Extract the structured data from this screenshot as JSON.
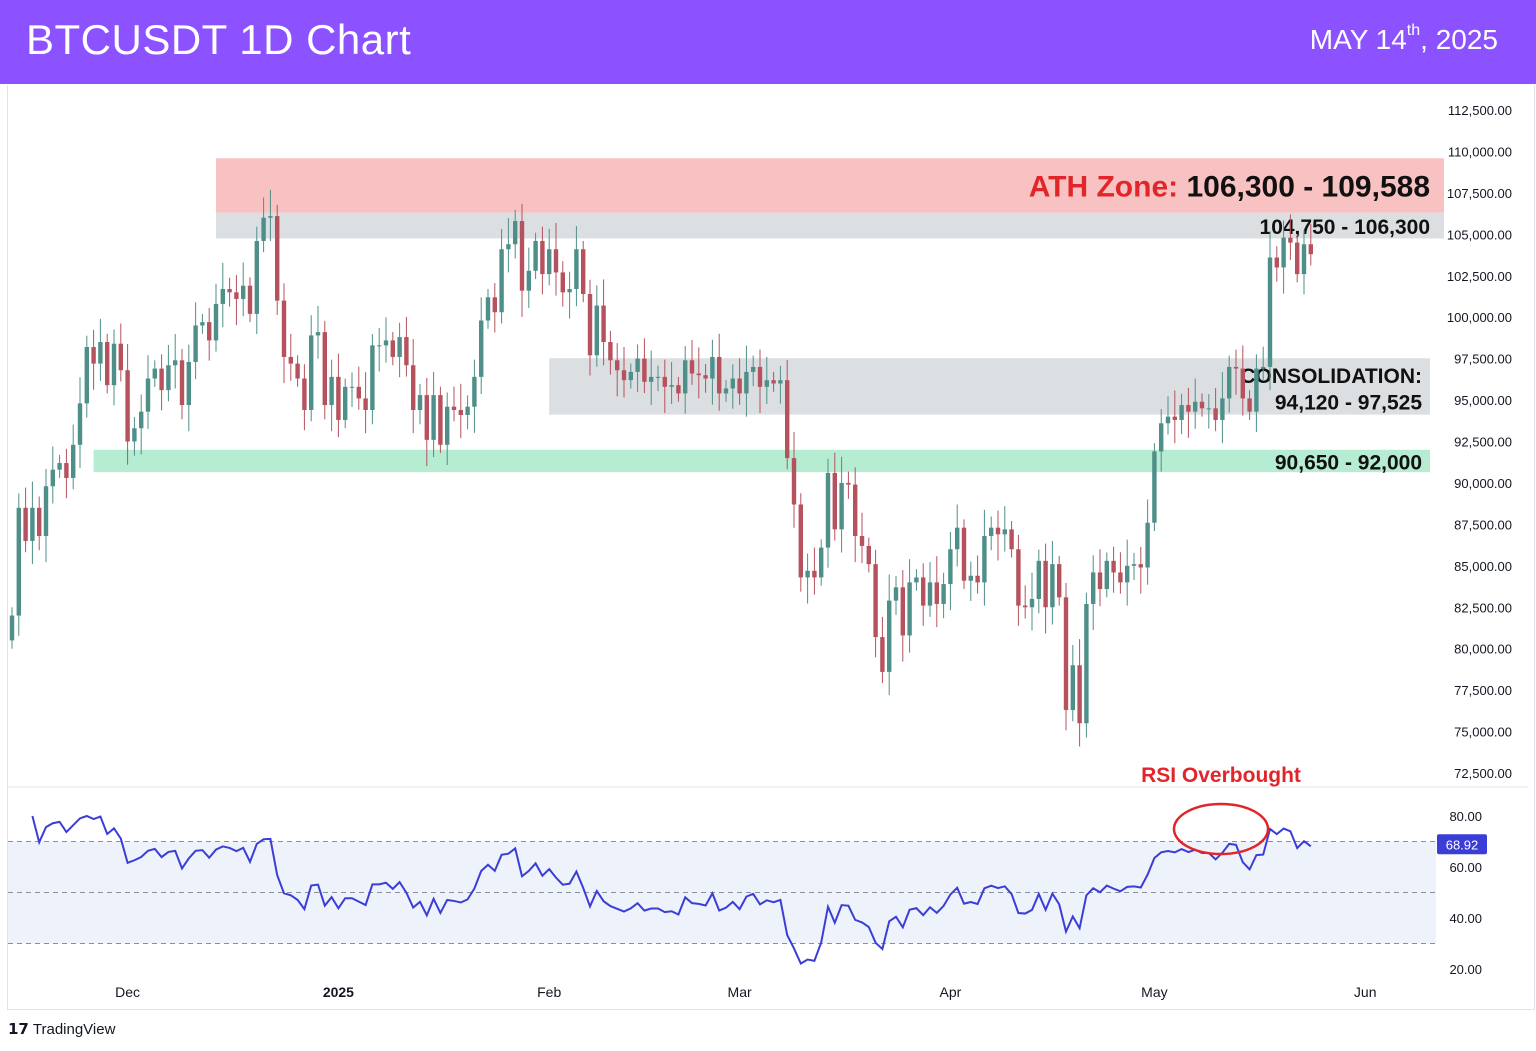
{
  "header": {
    "title": "BTCUSDT 1D Chart",
    "date_main": "MAY 14",
    "date_sup": "th",
    "date_year": ", 2025",
    "background": "#8c52ff"
  },
  "footer": {
    "brand": "TradingView",
    "brand_icon": "tradingview-logo-icon"
  },
  "chart_data": {
    "type": "candlestick",
    "title": "BTCUSDT 1D Chart",
    "price_axis": {
      "ylim": [
        72500,
        112500
      ],
      "ticks": [
        "112,500.00",
        "110,000.00",
        "107,500.00",
        "105,000.00",
        "102,500.00",
        "100,000.00",
        "97,500.00",
        "95,000.00",
        "92,500.00",
        "90,000.00",
        "87,500.00",
        "85,000.00",
        "82,500.00",
        "80,000.00",
        "77,500.00",
        "75,000.00",
        "72,500.00"
      ],
      "tick_values": [
        112500,
        110000,
        107500,
        105000,
        102500,
        100000,
        97500,
        95000,
        92500,
        90000,
        87500,
        85000,
        82500,
        80000,
        77500,
        75000,
        72500
      ]
    },
    "x_axis": {
      "labels": [
        "Dec",
        "2025",
        "Feb",
        "Mar",
        "Apr",
        "May",
        "Jun"
      ],
      "label_dates": [
        "2024-12-01",
        "2025-01-01",
        "2025-02-01",
        "2025-03-01",
        "2025-04-01",
        "2025-05-01",
        "2025-06-01"
      ],
      "start_date": "2024-11-14",
      "end_date": "2025-06-15"
    },
    "colors": {
      "up": "#4f8f89",
      "down": "#b5525e",
      "rsi_line": "#3b3ed6"
    },
    "candles_close": [
      82000,
      88500,
      86500,
      88500,
      86800,
      89800,
      90800,
      91200,
      90300,
      92300,
      94800,
      98200,
      97200,
      98500,
      95900,
      98400,
      96800,
      92500,
      93300,
      94300,
      96300,
      96900,
      95600,
      97100,
      97400,
      94700,
      97300,
      99500,
      99700,
      98600,
      100800,
      101700,
      101500,
      101100,
      101900,
      100200,
      104600,
      106000,
      106100,
      101000,
      97600,
      97200,
      96300,
      94400,
      98900,
      99100,
      94700,
      96400,
      93800,
      95800,
      95800,
      95100,
      94400,
      98300,
      98300,
      98600,
      97600,
      98800,
      97100,
      94400,
      95300,
      92600,
      95300,
      92300,
      94600,
      94400,
      94100,
      94600,
      96400,
      99800,
      101200,
      100300,
      104100,
      104400,
      105800,
      101600,
      102800,
      104600,
      102600,
      104100,
      102700,
      101500,
      101700,
      104100,
      101400,
      97700,
      100700,
      98500,
      97400,
      96800,
      96200,
      96700,
      97500,
      96100,
      96400,
      96400,
      95800,
      95900,
      95400,
      97400,
      96600,
      96500,
      96300,
      97600,
      95400,
      95700,
      96300,
      95400,
      96700,
      97000,
      95800,
      96200,
      96000,
      96200,
      91500,
      88700,
      84300,
      84700,
      84300,
      86100,
      90600,
      87200,
      90000,
      89900,
      86800,
      86200,
      85100,
      80700,
      78600,
      82900,
      83700,
      80800,
      84000,
      84300,
      82600,
      84000,
      82700,
      83900,
      86000,
      87300,
      84100,
      84400,
      84000,
      86800,
      87300,
      86900,
      87200,
      86000,
      82600,
      82500,
      83000,
      85300,
      82500,
      85100,
      83100,
      76300,
      79000,
      75500,
      82700,
      84600,
      83600,
      85300,
      84600,
      84000,
      85000,
      85100,
      84900,
      87600,
      91900,
      93600,
      94000,
      93800,
      94700,
      94300,
      94900,
      94500,
      94500,
      93800,
      95100,
      97000,
      96900,
      95100,
      94300,
      96900,
      97000,
      103600,
      103000,
      104800,
      104500,
      102600,
      104400,
      103800
    ],
    "zones": [
      {
        "label_prefix": "ATH Zone: ",
        "label_range": "106,300 - 109,588",
        "low": 106300,
        "high": 109588,
        "color": "#f9c2c2",
        "start_date": "2024-12-14"
      },
      {
        "label": "104,750 - 106,300",
        "low": 104750,
        "high": 106300,
        "color": "#dcdfe2",
        "start_date": "2024-12-14"
      },
      {
        "label_line1": "CONSOLIDATION:",
        "label_line2": "94,120 - 97,525",
        "low": 94120,
        "high": 97525,
        "color": "#dcdfe2",
        "start_date": "2025-02-01"
      },
      {
        "label": "90,650 - 92,000",
        "low": 90650,
        "high": 92000,
        "color": "#b6ecd2",
        "start_date": "2024-11-26"
      }
    ],
    "rsi": {
      "ylim": [
        20,
        80
      ],
      "ticks": [
        "80.00",
        "60.00",
        "40.00",
        "20.00"
      ],
      "tick_values": [
        80,
        60,
        40,
        20
      ],
      "upper": 70,
      "middle": 50,
      "lower": 30,
      "current_value": "68.92",
      "annotation": "RSI Overbought",
      "annotation_color": "#e0262b"
    }
  }
}
